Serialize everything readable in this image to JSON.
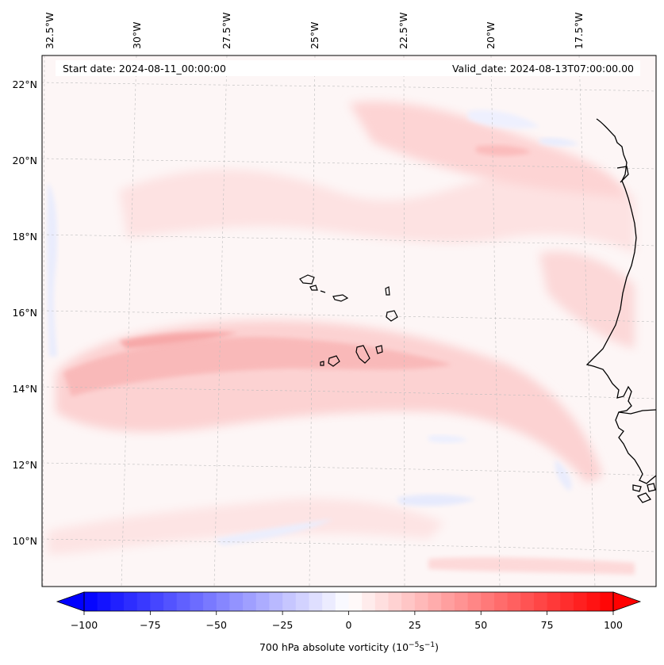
{
  "map": {
    "start_date": "Start date: 2024-08-11_00:00:00",
    "valid_date": "Valid_date: 2024-08-13T07:00:00.00",
    "lon_labels": [
      "32.5°W",
      "30°W",
      "27.5°W",
      "25°W",
      "22.5°W",
      "20°W",
      "17.5°W"
    ],
    "lat_labels": [
      "22°N",
      "20°N",
      "18°N",
      "16°N",
      "14°N",
      "12°N",
      "10°N"
    ],
    "gridlines": "dashed gray",
    "field": "700 hPa absolute vorticity",
    "coastline_color": "#000000"
  },
  "colorbar": {
    "ticks": [
      "−100",
      "−75",
      "−50",
      "−25",
      "0",
      "25",
      "50",
      "75",
      "100"
    ],
    "label_main": "700 hPa absolute vorticity (10",
    "label_exp1": "−5",
    "label_mid": "s",
    "label_exp2": "−1",
    "label_end": ")",
    "colors": {
      "min": "#0000ff",
      "mid": "#ffffff",
      "max": "#ff0000"
    },
    "extend": "both"
  }
}
